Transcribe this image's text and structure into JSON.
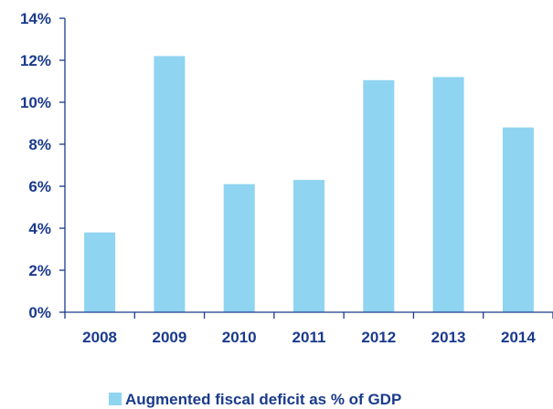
{
  "chart_data": {
    "type": "bar",
    "categories": [
      "2008",
      "2009",
      "2010",
      "2011",
      "2012",
      "2013",
      "2014"
    ],
    "series": [
      {
        "name": "Augmented fiscal deficit as % of GDP",
        "values": [
          3.8,
          12.2,
          6.1,
          6.3,
          11.05,
          11.2,
          8.8
        ]
      }
    ],
    "ylim": [
      0,
      14
    ],
    "yticks": [
      0,
      2,
      4,
      6,
      8,
      10,
      12,
      14
    ],
    "ytick_labels": [
      "0%",
      "2%",
      "4%",
      "6%",
      "8%",
      "10%",
      "12%",
      "14%"
    ],
    "title": "",
    "xlabel": "",
    "ylabel": "",
    "grid": false,
    "legend_position": "bottom-center",
    "colors": {
      "bar": "#8fd4f1",
      "axis": "#1a3a8c",
      "text": "#1a3a8c"
    }
  }
}
